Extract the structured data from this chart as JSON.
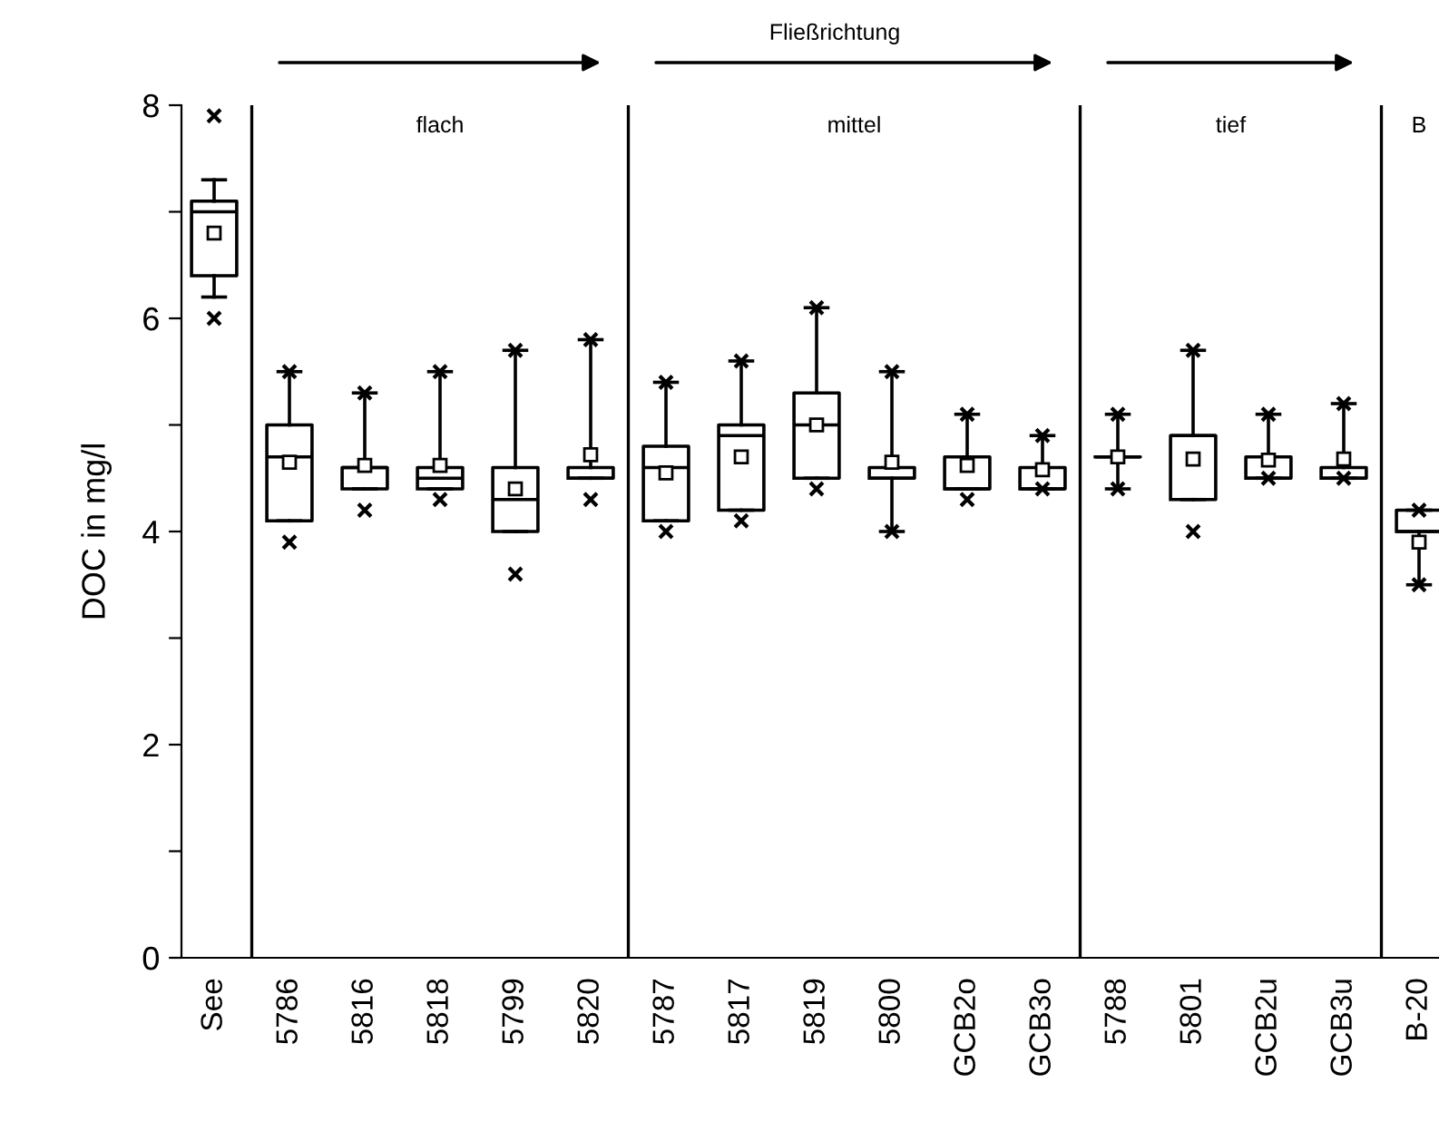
{
  "chart_data": {
    "type": "box",
    "title": "Fließrichtung",
    "ylabel": "DOC in mg/l",
    "categories": [
      "See",
      "5786",
      "5816",
      "5818",
      "5799",
      "5820",
      "5787",
      "5817",
      "5819",
      "5800",
      "GCB2o",
      "GCB3o",
      "5788",
      "5801",
      "GCB2u",
      "GCB3u",
      "B-20"
    ],
    "boxes": [
      {
        "low": 6.2,
        "q1": 6.4,
        "median": 7.0,
        "q3": 7.1,
        "high": 7.3,
        "mean": 6.8,
        "outliers": [
          6.0,
          7.9
        ]
      },
      {
        "low": 4.1,
        "q1": 4.1,
        "median": 4.7,
        "q3": 5.0,
        "high": 5.5,
        "mean": 4.65,
        "outliers": [
          3.9,
          5.5
        ]
      },
      {
        "low": 4.4,
        "q1": 4.4,
        "median": 4.6,
        "q3": 4.6,
        "high": 5.3,
        "mean": 4.62,
        "outliers": [
          4.2,
          5.3
        ]
      },
      {
        "low": 4.4,
        "q1": 4.4,
        "median": 4.5,
        "q3": 4.6,
        "high": 5.5,
        "mean": 4.62,
        "outliers": [
          4.3,
          5.5
        ]
      },
      {
        "low": 4.0,
        "q1": 4.0,
        "median": 4.3,
        "q3": 4.6,
        "high": 5.7,
        "mean": 4.4,
        "outliers": [
          3.6,
          5.7
        ]
      },
      {
        "low": 4.5,
        "q1": 4.5,
        "median": 4.5,
        "q3": 4.6,
        "high": 5.8,
        "mean": 4.72,
        "outliers": [
          4.3,
          5.8
        ]
      },
      {
        "low": 4.1,
        "q1": 4.1,
        "median": 4.6,
        "q3": 4.8,
        "high": 5.4,
        "mean": 4.55,
        "outliers": [
          4.0,
          5.4
        ]
      },
      {
        "low": 4.2,
        "q1": 4.2,
        "median": 4.9,
        "q3": 5.0,
        "high": 5.6,
        "mean": 4.7,
        "outliers": [
          4.1,
          5.6
        ]
      },
      {
        "low": 4.5,
        "q1": 4.5,
        "median": 5.0,
        "q3": 5.3,
        "high": 6.1,
        "mean": 5.0,
        "outliers": [
          4.4,
          6.1
        ]
      },
      {
        "low": 4.0,
        "q1": 4.5,
        "median": 4.5,
        "q3": 4.6,
        "high": 5.5,
        "mean": 4.65,
        "outliers": [
          4.0,
          5.5
        ]
      },
      {
        "low": 4.4,
        "q1": 4.4,
        "median": 4.4,
        "q3": 4.7,
        "high": 5.1,
        "mean": 4.62,
        "outliers": [
          4.3,
          5.1
        ]
      },
      {
        "low": 4.4,
        "q1": 4.4,
        "median": 4.4,
        "q3": 4.6,
        "high": 4.9,
        "mean": 4.58,
        "outliers": [
          4.4,
          4.9
        ]
      },
      {
        "low": 4.4,
        "q1": 4.7,
        "median": 4.7,
        "q3": 4.7,
        "high": 5.1,
        "mean": 4.7,
        "outliers": [
          4.4,
          5.1
        ]
      },
      {
        "low": 4.3,
        "q1": 4.3,
        "median": 4.9,
        "q3": 4.9,
        "high": 5.7,
        "mean": 4.68,
        "outliers": [
          4.0,
          5.7
        ]
      },
      {
        "low": 4.5,
        "q1": 4.5,
        "median": 4.5,
        "q3": 4.7,
        "high": 5.1,
        "mean": 4.67,
        "outliers": [
          4.5,
          5.1
        ]
      },
      {
        "low": 4.5,
        "q1": 4.5,
        "median": 4.5,
        "q3": 4.6,
        "high": 5.2,
        "mean": 4.68,
        "outliers": [
          4.5,
          5.2
        ]
      },
      {
        "low": 3.5,
        "q1": 4.0,
        "median": 4.0,
        "q3": 4.2,
        "high": 4.2,
        "mean": 3.9,
        "outliers": [
          3.5,
          4.2
        ]
      }
    ],
    "ylim": [
      0,
      8
    ],
    "yticks": [
      0,
      {
        "value": 1,
        "label": null
      },
      2,
      {
        "value": 3,
        "label": null
      },
      4,
      {
        "value": 5,
        "label": null
      },
      6,
      {
        "value": 7,
        "label": null
      },
      8
    ],
    "annotations": [
      "flach",
      "mittel",
      "tief",
      "B"
    ],
    "grid": false,
    "legend": false
  }
}
